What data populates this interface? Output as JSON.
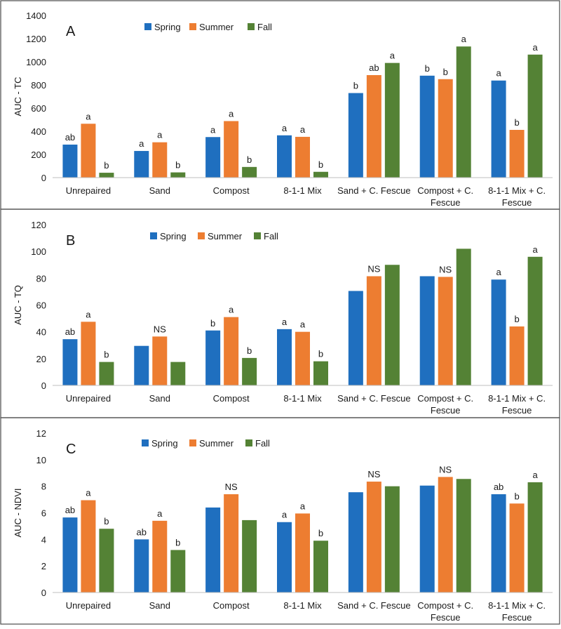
{
  "colors": {
    "Spring": "#1f6fbf",
    "Summer": "#ed7d31",
    "Fall": "#548235"
  },
  "chart_data": [
    {
      "type": "bar",
      "panel_label": "A",
      "ylabel": "AUC - TC",
      "ylim": [
        0,
        1400
      ],
      "yticks": [
        "0",
        "200",
        "400",
        "600",
        "800",
        "1000",
        "1200",
        "1400"
      ],
      "categories": [
        "Unrepaired",
        "Sand",
        "Compost",
        "8-1-1 Mix",
        "Sand + C. Fescue",
        "Compost + C. Fescue",
        "8-1-1 Mix + C. Fescue"
      ],
      "category_lines": [
        [
          "Unrepaired"
        ],
        [
          "Sand"
        ],
        [
          "Compost"
        ],
        [
          "8-1-1 Mix"
        ],
        [
          "Sand + C. Fescue"
        ],
        [
          "Compost + C.",
          "Fescue"
        ],
        [
          "8-1-1 Mix + C.",
          "Fescue"
        ]
      ],
      "legend": "top-center",
      "grid": false,
      "series": [
        {
          "name": "Spring",
          "values": [
            285,
            230,
            350,
            365,
            730,
            880,
            838
          ],
          "labels": [
            "ab",
            "a",
            "a",
            "a",
            "b",
            "b",
            "a"
          ]
        },
        {
          "name": "Summer",
          "values": [
            465,
            305,
            488,
            352,
            885,
            850,
            412
          ],
          "labels": [
            "a",
            "a",
            "a",
            "a",
            "ab",
            "b",
            "b"
          ]
        },
        {
          "name": "Fall",
          "values": [
            42,
            45,
            92,
            50,
            990,
            1132,
            1062
          ],
          "labels": [
            "b",
            "b",
            "b",
            "b",
            "a",
            "a",
            "a"
          ]
        }
      ]
    },
    {
      "type": "bar",
      "panel_label": "B",
      "ylabel": "AUC - TQ",
      "ylim": [
        0,
        120
      ],
      "yticks": [
        "0",
        "20",
        "40",
        "60",
        "80",
        "100",
        "120"
      ],
      "categories": [
        "Unrepaired",
        "Sand",
        "Compost",
        "8-1-1 Mix",
        "Sand + C. Fescue",
        "Compost + C. Fescue",
        "8-1-1 Mix + C. Fescue"
      ],
      "category_lines": [
        [
          "Unrepaired"
        ],
        [
          "Sand"
        ],
        [
          "Compost"
        ],
        [
          "8-1-1 Mix"
        ],
        [
          "Sand + C. Fescue"
        ],
        [
          "Compost + C.",
          "Fescue"
        ],
        [
          "8-1-1 Mix + C.",
          "Fescue"
        ]
      ],
      "legend": "top-center",
      "grid": false,
      "series": [
        {
          "name": "Spring",
          "values": [
            34.5,
            29.5,
            41,
            42,
            70.5,
            81.5,
            79
          ],
          "labels": [
            "ab",
            "",
            "b",
            "a",
            "",
            "",
            "a"
          ]
        },
        {
          "name": "Summer",
          "values": [
            47.5,
            36.5,
            51,
            40,
            81.5,
            81,
            44
          ],
          "labels": [
            "a",
            "NS",
            "a",
            "a",
            "NS",
            "NS",
            "b"
          ]
        },
        {
          "name": "Fall",
          "values": [
            17.5,
            17.5,
            20.5,
            18,
            90,
            102,
            96
          ],
          "labels": [
            "b",
            "",
            "b",
            "b",
            "",
            "",
            "a"
          ]
        }
      ]
    },
    {
      "type": "bar",
      "panel_label": "C",
      "ylabel": "AUC - NDVI",
      "ylim": [
        0,
        12
      ],
      "yticks": [
        "0",
        "2",
        "4",
        "6",
        "8",
        "10",
        "12"
      ],
      "categories": [
        "Unrepaired",
        "Sand",
        "Compost",
        "8-1-1 Mix",
        "Sand + C. Fescue",
        "Compost + C. Fescue",
        "8-1-1 Mix + C. Fescue"
      ],
      "category_lines": [
        [
          "Unrepaired"
        ],
        [
          "Sand"
        ],
        [
          "Compost"
        ],
        [
          "8-1-1 Mix"
        ],
        [
          "Sand + C. Fescue"
        ],
        [
          "Compost + C.",
          "Fescue"
        ],
        [
          "8-1-1 Mix + C.",
          "Fescue"
        ]
      ],
      "legend": "top-center",
      "grid": false,
      "series": [
        {
          "name": "Spring",
          "values": [
            5.65,
            4.0,
            6.4,
            5.3,
            7.55,
            8.05,
            7.4
          ],
          "labels": [
            "ab",
            "ab",
            "",
            "a",
            "",
            "",
            "ab"
          ]
        },
        {
          "name": "Summer",
          "values": [
            6.95,
            5.4,
            7.4,
            5.95,
            8.35,
            8.7,
            6.7
          ],
          "labels": [
            "a",
            "a",
            "NS",
            "a",
            "NS",
            "NS",
            "b"
          ]
        },
        {
          "name": "Fall",
          "values": [
            4.8,
            3.2,
            5.45,
            3.9,
            8.0,
            8.55,
            8.3
          ],
          "labels": [
            "b",
            "b",
            "",
            "b",
            "",
            "",
            "a"
          ]
        }
      ]
    }
  ]
}
